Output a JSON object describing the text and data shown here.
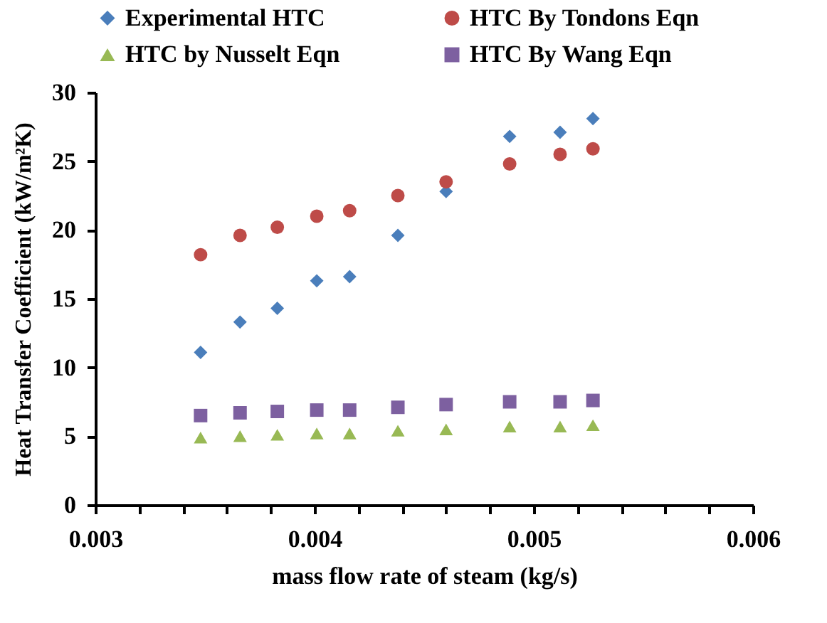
{
  "chart_data": {
    "type": "scatter",
    "xlabel": "mass flow rate of steam (kg/s)",
    "ylabel": "Heat Transfer Coefficient (kW/m²K)",
    "x": [
      0.00348,
      0.00366,
      0.00383,
      0.00401,
      0.00416,
      0.00438,
      0.0046,
      0.00489,
      0.00512,
      0.00527
    ],
    "series": [
      {
        "name": "Experimental HTC",
        "color": "#4a7ebb",
        "marker": "diamond",
        "values": [
          11.1,
          13.3,
          14.3,
          16.3,
          16.6,
          19.6,
          22.8,
          26.8,
          27.1,
          28.1
        ]
      },
      {
        "name": "HTC By Tondons Eqn",
        "color": "#be4b48",
        "marker": "circle",
        "values": [
          18.2,
          19.6,
          20.2,
          21.0,
          21.4,
          22.5,
          23.5,
          24.8,
          25.5,
          25.9
        ]
      },
      {
        "name": "HTC by Nusselt Eqn",
        "color": "#98b954",
        "marker": "triangle",
        "values": [
          4.9,
          5.0,
          5.1,
          5.2,
          5.2,
          5.4,
          5.5,
          5.7,
          5.7,
          5.8
        ]
      },
      {
        "name": "HTC By Wang Eqn",
        "color": "#7d60a0",
        "marker": "square",
        "values": [
          6.5,
          6.7,
          6.8,
          6.9,
          6.9,
          7.1,
          7.3,
          7.5,
          7.5,
          7.6
        ]
      }
    ],
    "xlim": [
      0.003,
      0.006
    ],
    "xticks": [
      0.003,
      {
        "value": 0.0032,
        "label": null
      },
      {
        "value": 0.0034,
        "label": null
      },
      {
        "value": 0.0036,
        "label": null
      },
      {
        "value": 0.0038,
        "label": null
      },
      0.004,
      {
        "value": 0.0042,
        "label": null
      },
      {
        "value": 0.0044,
        "label": null
      },
      {
        "value": 0.0046,
        "label": null
      },
      {
        "value": 0.0048,
        "label": null
      },
      0.005,
      {
        "value": 0.0052,
        "label": null
      },
      {
        "value": 0.0054,
        "label": null
      },
      {
        "value": 0.0056,
        "label": null
      },
      {
        "value": 0.0058,
        "label": null
      },
      0.006
    ],
    "ylim": [
      0,
      30
    ],
    "yticks": [
      0,
      5,
      10,
      15,
      20,
      25,
      30
    ],
    "grid": false,
    "legend": "top"
  }
}
